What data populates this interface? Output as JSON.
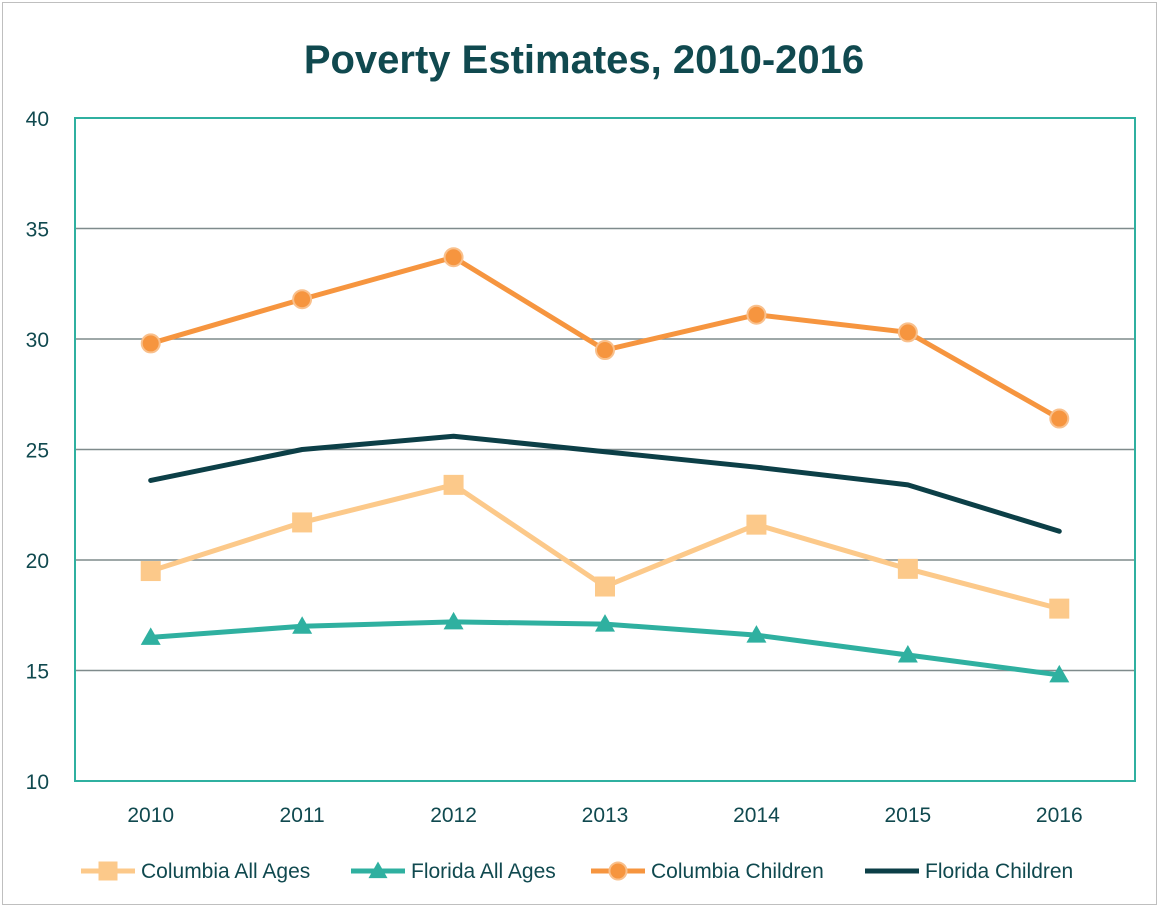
{
  "chart_data": {
    "type": "line",
    "title": "Poverty Estimates, 2010-2016",
    "xlabel": "",
    "ylabel": "",
    "categories": [
      "2010",
      "2011",
      "2012",
      "2013",
      "2014",
      "2015",
      "2016"
    ],
    "ylim": [
      10,
      40
    ],
    "yticks": [
      "10",
      "15",
      "20",
      "25",
      "30",
      "35",
      "40"
    ],
    "grid": true,
    "legend_position": "bottom",
    "series": [
      {
        "name": "Columbia All Ages",
        "values": [
          19.5,
          21.7,
          23.4,
          18.8,
          21.6,
          19.6,
          17.8
        ],
        "color": "#fcc98a",
        "marker": "square"
      },
      {
        "name": "Florida All Ages",
        "values": [
          16.5,
          17.0,
          17.2,
          17.1,
          16.6,
          15.7,
          14.8
        ],
        "color": "#2fb0a0",
        "marker": "triangle"
      },
      {
        "name": "Columbia Children",
        "values": [
          29.8,
          31.8,
          33.7,
          29.5,
          31.1,
          30.3,
          26.4
        ],
        "color": "#f6953f",
        "marker": "circle"
      },
      {
        "name": "Florida Children",
        "values": [
          23.6,
          25.0,
          25.6,
          24.9,
          24.2,
          23.4,
          21.3
        ],
        "color": "#0c3f47",
        "marker": "none"
      }
    ]
  },
  "colors": {
    "title": "#10494f",
    "plot_border": "#2fb0a0",
    "gridline": "#7f8b8c",
    "axis_text": "#10494f"
  }
}
